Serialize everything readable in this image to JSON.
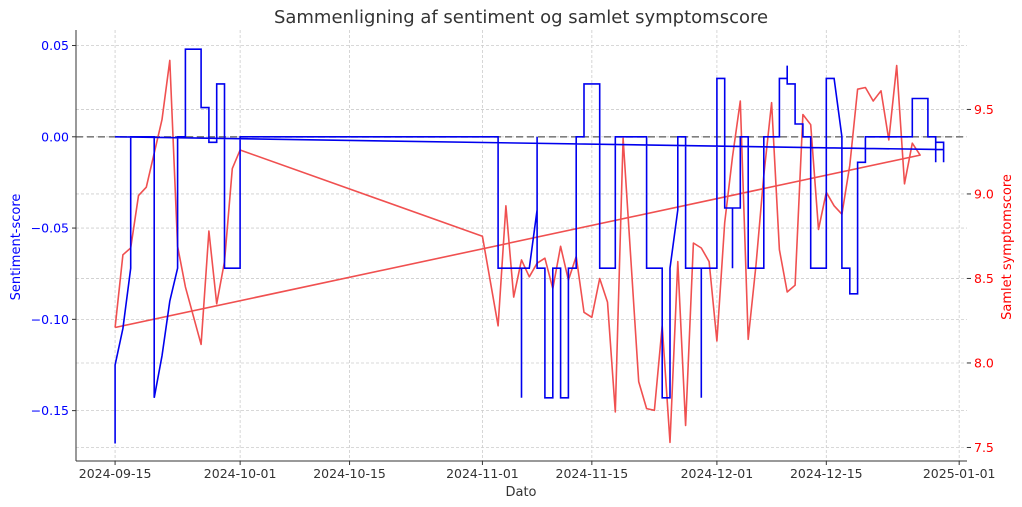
{
  "chart_data": {
    "type": "line",
    "title": "Sammenligning af sentiment og samlet symptomscore",
    "xlabel": "Dato",
    "ylabel_left": "Sentiment-score",
    "ylabel_right": "Samlet symptomscore",
    "x_ticks": [
      "2024-09-15",
      "2024-10-01",
      "2024-10-15",
      "2024-11-01",
      "2024-11-15",
      "2024-12-01",
      "2024-12-15",
      "2025-01-01"
    ],
    "y_left_ticks": [
      "0.05",
      "0.00",
      "−0.05",
      "−0.10",
      "−0.15"
    ],
    "y_right_ticks": [
      "7.5",
      "8.0",
      "8.5",
      "9.0",
      "9.5"
    ],
    "xlim": [
      "2024-09-10",
      "2025-01-02"
    ],
    "ylim_left": [
      -0.1776,
      0.0585
    ],
    "ylim_right": [
      7.42,
      9.97
    ],
    "grid": true,
    "reference_line": {
      "axis": "left",
      "value": 0.0,
      "style": "dashed",
      "color": "#7f7f7f"
    },
    "colors": {
      "left": "#0000ff",
      "right": "#ff0000",
      "sentiment": "#0000ee",
      "symptom": "#f05050"
    },
    "series": [
      {
        "axis": "left",
        "points": [
          [
            "2024-09-15",
            -0.168
          ],
          [
            "2024-09-15",
            -0.125
          ],
          [
            "2024-09-16",
            -0.105
          ],
          [
            "2024-09-17",
            -0.072
          ],
          [
            "2024-09-17",
            0.0
          ],
          [
            "2024-09-20",
            0.0
          ],
          [
            "2024-09-20",
            -0.143
          ],
          [
            "2024-09-21",
            -0.12
          ],
          [
            "2024-09-22",
            -0.09
          ],
          [
            "2024-09-23",
            -0.072
          ],
          [
            "2024-09-23",
            0.0
          ],
          [
            "2024-09-24",
            0.0
          ],
          [
            "2024-09-24",
            0.048
          ],
          [
            "2024-09-26",
            0.048
          ],
          [
            "2024-09-26",
            0.016
          ],
          [
            "2024-09-27",
            0.016
          ],
          [
            "2024-09-27",
            -0.003
          ],
          [
            "2024-09-28",
            -0.003
          ],
          [
            "2024-09-28",
            0.029
          ],
          [
            "2024-09-29",
            0.029
          ],
          [
            "2024-09-29",
            -0.072
          ],
          [
            "2024-10-01",
            -0.072
          ],
          [
            "2024-10-01",
            0.0
          ],
          [
            "2024-11-03",
            0.0
          ],
          [
            "2024-11-03",
            -0.072
          ],
          [
            "2024-11-06",
            -0.072
          ],
          [
            "2024-11-06",
            -0.143
          ],
          [
            "2024-11-06",
            -0.072
          ],
          [
            "2024-11-07",
            -0.072
          ],
          [
            "2024-11-08",
            -0.04
          ],
          [
            "2024-11-08",
            0.0
          ],
          [
            "2024-11-08",
            -0.072
          ],
          [
            "2024-11-09",
            -0.072
          ],
          [
            "2024-11-09",
            -0.143
          ],
          [
            "2024-11-10",
            -0.143
          ],
          [
            "2024-11-10",
            -0.072
          ],
          [
            "2024-11-11",
            -0.072
          ],
          [
            "2024-11-11",
            -0.143
          ],
          [
            "2024-11-12",
            -0.143
          ],
          [
            "2024-11-12",
            -0.072
          ],
          [
            "2024-11-13",
            -0.072
          ],
          [
            "2024-11-13",
            0.0
          ],
          [
            "2024-11-14",
            0.0
          ],
          [
            "2024-11-14",
            0.029
          ],
          [
            "2024-11-16",
            0.029
          ],
          [
            "2024-11-16",
            -0.072
          ],
          [
            "2024-11-18",
            -0.072
          ],
          [
            "2024-11-18",
            0.0
          ],
          [
            "2024-11-22",
            0.0
          ],
          [
            "2024-11-22",
            -0.072
          ],
          [
            "2024-11-24",
            -0.072
          ],
          [
            "2024-11-24",
            -0.143
          ],
          [
            "2024-11-25",
            -0.143
          ],
          [
            "2024-11-25",
            -0.072
          ],
          [
            "2024-11-26",
            -0.04
          ],
          [
            "2024-11-26",
            0.0
          ],
          [
            "2024-11-27",
            0.0
          ],
          [
            "2024-11-27",
            -0.072
          ],
          [
            "2024-11-29",
            -0.072
          ],
          [
            "2024-11-29",
            -0.143
          ],
          [
            "2024-11-29",
            -0.072
          ],
          [
            "2024-12-01",
            -0.072
          ],
          [
            "2024-12-01",
            0.032
          ],
          [
            "2024-12-02",
            0.032
          ],
          [
            "2024-12-02",
            -0.039
          ],
          [
            "2024-12-03",
            -0.039
          ],
          [
            "2024-12-03",
            -0.072
          ],
          [
            "2024-12-03",
            -0.039
          ],
          [
            "2024-12-04",
            -0.039
          ],
          [
            "2024-12-04",
            0.0
          ],
          [
            "2024-12-05",
            0.0
          ],
          [
            "2024-12-05",
            -0.072
          ],
          [
            "2024-12-07",
            -0.072
          ],
          [
            "2024-12-07",
            0.0
          ],
          [
            "2024-12-09",
            0.0
          ],
          [
            "2024-12-09",
            0.032
          ],
          [
            "2024-12-10",
            0.032
          ],
          [
            "2024-12-10",
            0.039
          ],
          [
            "2024-12-10",
            0.029
          ],
          [
            "2024-12-11",
            0.029
          ],
          [
            "2024-12-11",
            0.007
          ],
          [
            "2024-12-12",
            0.007
          ],
          [
            "2024-12-12",
            0.0
          ],
          [
            "2024-12-13",
            0.0
          ],
          [
            "2024-12-13",
            -0.072
          ],
          [
            "2024-12-15",
            -0.072
          ],
          [
            "2024-12-15",
            0.032
          ],
          [
            "2024-12-16",
            0.032
          ],
          [
            "2024-12-17",
            0.0
          ],
          [
            "2024-12-17",
            -0.072
          ],
          [
            "2024-12-18",
            -0.072
          ],
          [
            "2024-12-18",
            -0.086
          ],
          [
            "2024-12-19",
            -0.086
          ],
          [
            "2024-12-19",
            -0.014
          ],
          [
            "2024-12-20",
            -0.014
          ],
          [
            "2024-12-20",
            0.0
          ],
          [
            "2024-12-26",
            0.0
          ],
          [
            "2024-12-26",
            0.021
          ],
          [
            "2024-12-28",
            0.021
          ],
          [
            "2024-12-28",
            0.0
          ],
          [
            "2024-12-29",
            0.0
          ],
          [
            "2024-12-29",
            -0.014
          ],
          [
            "2024-12-29",
            -0.003
          ],
          [
            "2024-12-30",
            -0.003
          ],
          [
            "2024-12-30",
            -0.014
          ],
          [
            "2024-12-30",
            -0.007
          ],
          [
            "2024-09-15",
            0.0
          ]
        ]
      },
      {
        "axis": "right",
        "points": [
          [
            "2024-09-15",
            8.21
          ],
          [
            "2024-09-16",
            8.64
          ],
          [
            "2024-09-17",
            8.68
          ],
          [
            "2024-09-18",
            8.99
          ],
          [
            "2024-09-19",
            9.04
          ],
          [
            "2024-09-21",
            9.44
          ],
          [
            "2024-09-22",
            9.79
          ],
          [
            "2024-09-23",
            8.69
          ],
          [
            "2024-09-24",
            8.45
          ],
          [
            "2024-09-26",
            8.11
          ],
          [
            "2024-09-27",
            8.78
          ],
          [
            "2024-09-28",
            8.35
          ],
          [
            "2024-09-29",
            8.6
          ],
          [
            "2024-09-30",
            9.15
          ],
          [
            "2024-10-01",
            9.26
          ],
          [
            "2024-11-01",
            8.75
          ],
          [
            "2024-11-03",
            8.22
          ],
          [
            "2024-11-04",
            8.93
          ],
          [
            "2024-11-05",
            8.39
          ],
          [
            "2024-11-06",
            8.61
          ],
          [
            "2024-11-07",
            8.51
          ],
          [
            "2024-11-08",
            8.59
          ],
          [
            "2024-11-09",
            8.62
          ],
          [
            "2024-11-10",
            8.44
          ],
          [
            "2024-11-11",
            8.69
          ],
          [
            "2024-11-12",
            8.49
          ],
          [
            "2024-11-13",
            8.63
          ],
          [
            "2024-11-14",
            8.3
          ],
          [
            "2024-11-15",
            8.27
          ],
          [
            "2024-11-16",
            8.5
          ],
          [
            "2024-11-17",
            8.36
          ],
          [
            "2024-11-18",
            7.71
          ],
          [
            "2024-11-19",
            9.33
          ],
          [
            "2024-11-20",
            8.61
          ],
          [
            "2024-11-21",
            7.89
          ],
          [
            "2024-11-22",
            7.73
          ],
          [
            "2024-11-23",
            7.72
          ],
          [
            "2024-11-24",
            8.22
          ],
          [
            "2024-11-25",
            7.53
          ],
          [
            "2024-11-26",
            8.6
          ],
          [
            "2024-11-27",
            7.63
          ],
          [
            "2024-11-28",
            8.71
          ],
          [
            "2024-11-29",
            8.68
          ],
          [
            "2024-11-30",
            8.6
          ],
          [
            "2024-12-01",
            8.13
          ],
          [
            "2024-12-02",
            8.83
          ],
          [
            "2024-12-03",
            9.22
          ],
          [
            "2024-12-04",
            9.55
          ],
          [
            "2024-12-05",
            8.14
          ],
          [
            "2024-12-06",
            8.58
          ],
          [
            "2024-12-07",
            9.11
          ],
          [
            "2024-12-08",
            9.54
          ],
          [
            "2024-12-09",
            8.67
          ],
          [
            "2024-12-10",
            8.42
          ],
          [
            "2024-12-11",
            8.46
          ],
          [
            "2024-12-12",
            9.47
          ],
          [
            "2024-12-13",
            9.41
          ],
          [
            "2024-12-14",
            8.79
          ],
          [
            "2024-12-15",
            9.01
          ],
          [
            "2024-12-16",
            8.93
          ],
          [
            "2024-12-17",
            8.88
          ],
          [
            "2024-12-18",
            9.17
          ],
          [
            "2024-12-19",
            9.62
          ],
          [
            "2024-12-20",
            9.63
          ],
          [
            "2024-12-21",
            9.55
          ],
          [
            "2024-12-22",
            9.61
          ],
          [
            "2024-12-23",
            9.32
          ],
          [
            "2024-12-24",
            9.76
          ],
          [
            "2024-12-25",
            9.06
          ],
          [
            "2024-12-26",
            9.3
          ],
          [
            "2024-12-27",
            9.23
          ],
          [
            "2024-09-15",
            8.21
          ]
        ]
      }
    ]
  }
}
